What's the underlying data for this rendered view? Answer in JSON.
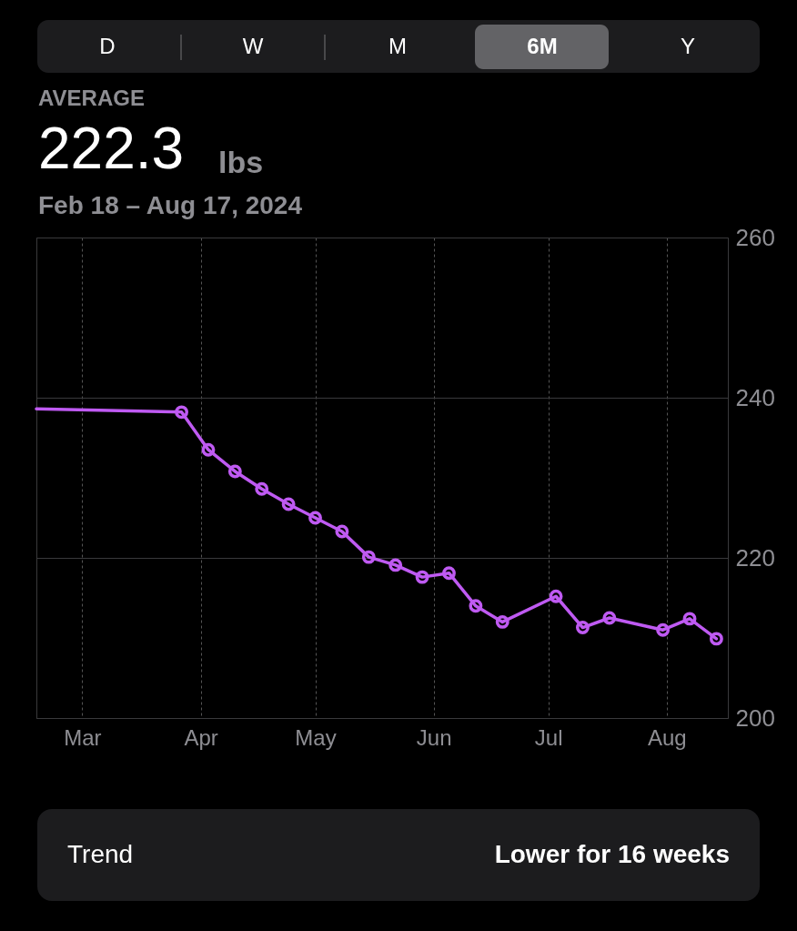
{
  "chart_data": {
    "type": "line",
    "annotations": [
      "D",
      "W",
      "M",
      "6M",
      "Y",
      "AVERAGE",
      "222.3",
      "lbs",
      "Feb 18 – Aug 17, 2024",
      "Trend",
      "Lower for 16 weeks"
    ],
    "series": [
      {
        "color": "#bf5af2",
        "x": [
          "2024-02-18",
          "2024-03-27",
          "2024-04-03",
          "2024-04-10",
          "2024-04-17",
          "2024-04-24",
          "2024-05-01",
          "2024-05-08",
          "2024-05-15",
          "2024-05-22",
          "2024-05-29",
          "2024-06-05",
          "2024-06-12",
          "2024-06-19",
          "2024-07-03",
          "2024-07-10",
          "2024-07-17",
          "2024-07-31",
          "2024-08-07",
          "2024-08-14"
        ],
        "values": [
          238.6,
          238.2,
          233.5,
          230.8,
          228.6,
          226.7,
          225.0,
          223.3,
          220.1,
          219.1,
          217.6,
          218.1,
          214.0,
          212.0,
          215.2,
          211.3,
          212.5,
          211.0,
          212.4,
          209.9
        ]
      }
    ],
    "xlim": [
      "2024-02-18",
      "2024-08-17"
    ],
    "xticks": [
      {
        "value": "2024-03-01",
        "label": "Mar"
      },
      {
        "value": "2024-04-01",
        "label": "Apr"
      },
      {
        "value": "2024-05-01",
        "label": "May"
      },
      {
        "value": "2024-06-01",
        "label": "Jun"
      },
      {
        "value": "2024-07-01",
        "label": "Jul"
      },
      {
        "value": "2024-08-01",
        "label": "Aug"
      }
    ],
    "ylim": [
      200,
      260
    ],
    "yticks": [
      200,
      220,
      240,
      260
    ],
    "grid": true,
    "marker": "circle",
    "line_style": "solid"
  }
}
